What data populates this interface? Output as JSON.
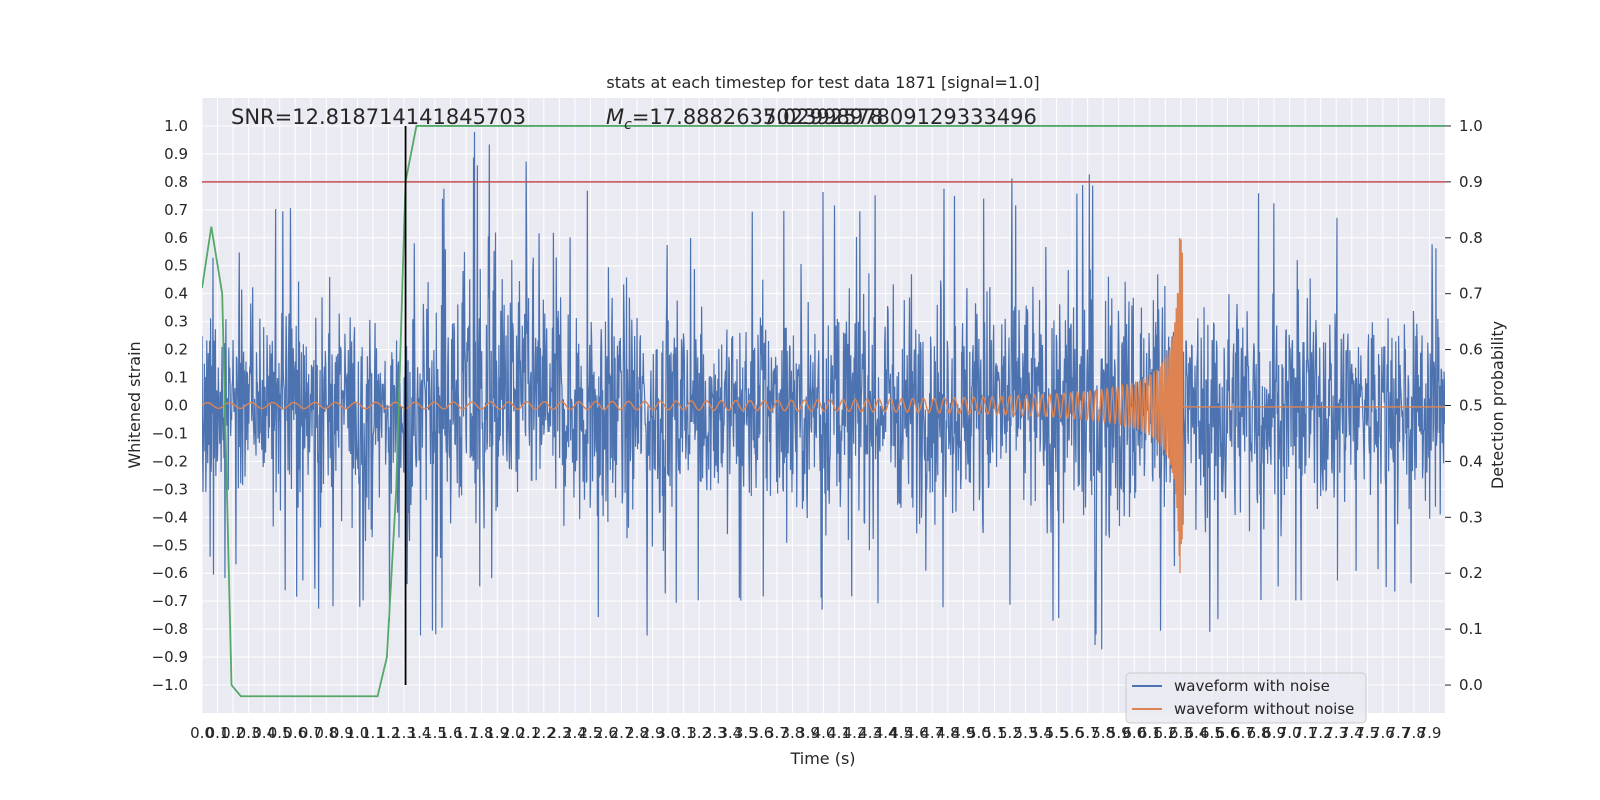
{
  "chart_data": {
    "type": "line",
    "title": "stats at each timestep for test data 1871 [signal=1.0]",
    "xlabel": "Time (s)",
    "ylabel": "Whitened strain",
    "ylabel_right": "Detection probability",
    "xlim": [
      0.0,
      8.0
    ],
    "ylim": [
      -1.1,
      1.1
    ],
    "ylim_right": [
      -0.05,
      1.05
    ],
    "grid": true,
    "legend_position": "lower-right",
    "x_ticks": [
      "0.0",
      "0.1",
      "0.2",
      "0.3",
      "0.4",
      "0.5",
      "0.6",
      "0.7",
      "0.8",
      "0.9",
      "1.0",
      "1.1",
      "1.2",
      "1.3",
      "1.4",
      "1.5",
      "1.6",
      "1.7",
      "1.8",
      "1.9",
      "2.0",
      "2.1",
      "2.2",
      "2.3",
      "2.4",
      "2.5",
      "2.6",
      "2.7",
      "2.8",
      "2.9",
      "3.0",
      "3.1",
      "3.2",
      "3.3",
      "3.4",
      "3.5",
      "3.6",
      "3.7",
      "3.8",
      "3.9",
      "4.0",
      "4.1",
      "4.2",
      "4.3",
      "4.4",
      "4.5",
      "4.6",
      "4.7",
      "4.8",
      "4.9",
      "5.0",
      "5.1",
      "5.2",
      "5.3",
      "5.4",
      "5.5",
      "5.6",
      "5.7",
      "5.8",
      "5.9",
      "6.0",
      "6.1",
      "6.2",
      "6.3",
      "6.4",
      "6.5",
      "6.6",
      "6.7",
      "6.8",
      "6.9",
      "7.0",
      "7.1",
      "7.2",
      "7.3",
      "7.4",
      "7.5",
      "7.6",
      "7.7",
      "7.8",
      "7.9"
    ],
    "y_ticks": [
      "1.0",
      "0.9",
      "0.8",
      "0.7",
      "0.6",
      "0.5",
      "0.4",
      "0.3",
      "0.2",
      "0.1",
      "0.0",
      "−0.1",
      "−0.2",
      "−0.3",
      "−0.4",
      "−0.5",
      "−0.6",
      "−0.7",
      "−0.8",
      "−0.9",
      "−1.0"
    ],
    "y_ticks_right": [
      "1.0",
      "0.9",
      "0.8",
      "0.7",
      "0.6",
      "0.5",
      "0.4",
      "0.3",
      "0.2",
      "0.1",
      "0.0"
    ],
    "annotations": {
      "snr": "SNR=12.818714141845703",
      "mc_prefix": "M",
      "mc_sub": "c",
      "mc_value": "=17.888263702392578",
      "overlap": "5.0299897809129333496"
    },
    "colors": {
      "noise": "#4c72b0",
      "clean": "#dd8452",
      "probability": "#55a868",
      "threshold": "#c44e52",
      "marker": "#000000",
      "background": "#eaeaf2",
      "grid": "#ffffff"
    },
    "series": [
      {
        "name": "waveform with noise",
        "color": "#4c72b0",
        "envelope_top": [
          [
            0.0,
            0.75
          ],
          [
            0.2,
            0.6
          ],
          [
            0.5,
            0.72
          ],
          [
            0.68,
            0.88
          ],
          [
            0.8,
            0.7
          ],
          [
            1.0,
            0.6
          ],
          [
            1.1,
            0.55
          ],
          [
            1.3,
            0.5
          ],
          [
            1.7,
            1.0
          ],
          [
            2.3,
            0.95
          ],
          [
            3.0,
            0.65
          ],
          [
            3.5,
            0.7
          ],
          [
            4.4,
            0.82
          ],
          [
            4.9,
            0.81
          ],
          [
            5.5,
            0.83
          ],
          [
            6.0,
            0.88
          ],
          [
            6.15,
            0.98
          ],
          [
            6.35,
            0.62
          ],
          [
            6.7,
            0.8
          ],
          [
            7.2,
            0.7
          ],
          [
            8.0,
            0.62
          ]
        ],
        "envelope_bottom": [
          [
            0.0,
            -0.6
          ],
          [
            0.3,
            -0.64
          ],
          [
            0.55,
            -0.7
          ],
          [
            1.0,
            -0.8
          ],
          [
            1.4,
            -0.86
          ],
          [
            2.0,
            -0.68
          ],
          [
            2.8,
            -0.94
          ],
          [
            3.0,
            -0.75
          ],
          [
            3.5,
            -0.7
          ],
          [
            4.2,
            -0.77
          ],
          [
            5.2,
            -0.72
          ],
          [
            5.9,
            -0.97
          ],
          [
            6.1,
            -0.85
          ],
          [
            6.4,
            -0.83
          ],
          [
            7.0,
            -0.72
          ],
          [
            8.0,
            -0.65
          ]
        ]
      },
      {
        "name": "waveform without noise",
        "color": "#dd8452",
        "chirp_start": 0.0,
        "chirp_end": 6.31,
        "chirp_peak_amplitude": 0.6,
        "chirp_min_amplitude": 0.01
      },
      {
        "name": "detection probability",
        "color": "#55a868",
        "axis": "right",
        "x": [
          0.0,
          0.06,
          0.13,
          0.19,
          0.25,
          0.31,
          0.5,
          0.75,
          1.0,
          1.13,
          1.19,
          1.25,
          1.31,
          1.38,
          8.0
        ],
        "y": [
          0.71,
          0.82,
          0.7,
          0.0,
          -0.02,
          -0.02,
          -0.02,
          -0.02,
          -0.02,
          -0.02,
          0.05,
          0.35,
          0.9,
          1.0,
          1.0
        ]
      },
      {
        "name": "threshold",
        "color": "#c44e52",
        "axis": "right",
        "x": [
          0.0,
          8.0
        ],
        "y": [
          0.9,
          0.9
        ]
      }
    ],
    "marker_x": 1.31
  }
}
